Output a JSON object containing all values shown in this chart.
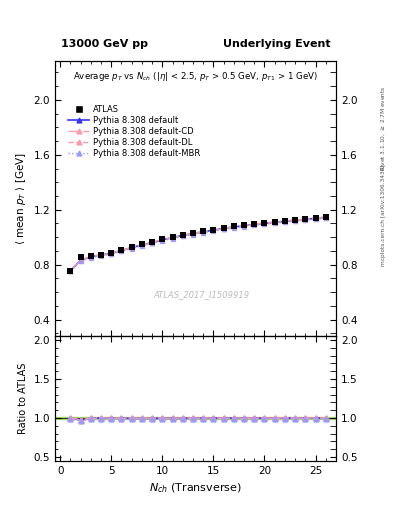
{
  "title_left": "13000 GeV pp",
  "title_right": "Underlying Event",
  "plot_title": "Average $p_T$ vs $N_{ch}$ ($|\\eta|$ < 2.5, $p_T$ > 0.5 GeV, $p_{T1}$ > 1 GeV)",
  "xlabel": "$N_{ch}$ (Transverse)",
  "ylabel_main": "$\\langle$ mean $p_T$ $\\rangle$ [GeV]",
  "ylabel_ratio": "Ratio to ATLAS",
  "watermark": "ATLAS_2017_I1509919",
  "right_label_top": "Rivet 3.1.10, $\\geq$ 2.7M events",
  "right_label_bottom": "mcplots.cern.ch [arXiv:1306.3436]",
  "ylim_main": [
    0.28,
    2.28
  ],
  "ylim_ratio": [
    0.45,
    2.05
  ],
  "xlim": [
    -0.5,
    27
  ],
  "nch_data": [
    1,
    2,
    3,
    4,
    5,
    6,
    7,
    8,
    9,
    10,
    11,
    12,
    13,
    14,
    15,
    16,
    17,
    18,
    19,
    20,
    21,
    22,
    23,
    24,
    25,
    26
  ],
  "atlas_data": [
    0.757,
    0.855,
    0.862,
    0.873,
    0.886,
    0.907,
    0.929,
    0.948,
    0.966,
    0.985,
    1.002,
    1.018,
    1.03,
    1.043,
    1.055,
    1.067,
    1.078,
    1.088,
    1.097,
    1.105,
    1.112,
    1.119,
    1.126,
    1.133,
    1.14,
    1.148
  ],
  "pythia_default": [
    0.757,
    0.83,
    0.858,
    0.87,
    0.882,
    0.903,
    0.924,
    0.943,
    0.961,
    0.98,
    0.997,
    1.013,
    1.026,
    1.039,
    1.051,
    1.063,
    1.074,
    1.084,
    1.093,
    1.101,
    1.108,
    1.116,
    1.123,
    1.13,
    1.137,
    1.145
  ],
  "pythia_cd": [
    0.76,
    0.832,
    0.86,
    0.872,
    0.884,
    0.905,
    0.926,
    0.945,
    0.963,
    0.982,
    0.999,
    1.015,
    1.028,
    1.041,
    1.053,
    1.065,
    1.076,
    1.086,
    1.095,
    1.103,
    1.11,
    1.118,
    1.125,
    1.132,
    1.139,
    1.147
  ],
  "pythia_dl": [
    0.755,
    0.828,
    0.856,
    0.868,
    0.88,
    0.901,
    0.922,
    0.941,
    0.959,
    0.978,
    0.995,
    1.011,
    1.024,
    1.037,
    1.049,
    1.061,
    1.072,
    1.082,
    1.091,
    1.099,
    1.106,
    1.114,
    1.121,
    1.128,
    1.135,
    1.143
  ],
  "pythia_mbr": [
    0.75,
    0.823,
    0.851,
    0.863,
    0.875,
    0.896,
    0.917,
    0.936,
    0.954,
    0.973,
    0.99,
    1.006,
    1.019,
    1.032,
    1.044,
    1.056,
    1.067,
    1.077,
    1.086,
    1.094,
    1.101,
    1.109,
    1.116,
    1.123,
    1.13,
    1.138
  ],
  "color_default": "#3333ff",
  "color_cd": "#ff99aa",
  "color_dl": "#ff99aa",
  "color_mbr": "#9999ff",
  "color_green_band": "#88cc44",
  "atlas_color": "black",
  "legend_labels": [
    "ATLAS",
    "Pythia 8.308 default",
    "Pythia 8.308 default-CD",
    "Pythia 8.308 default-DL",
    "Pythia 8.308 default-MBR"
  ]
}
